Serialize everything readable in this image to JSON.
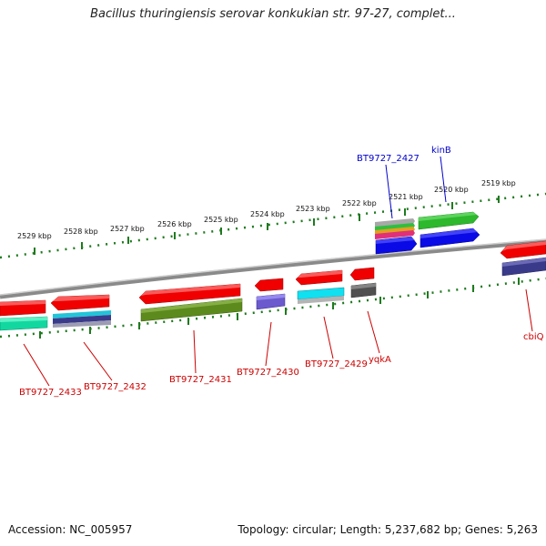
{
  "title": "Bacillus thuringiensis serovar konkukian str. 97-27, complet...",
  "footer": {
    "accession": "Accession: NC_005957",
    "summary": "Topology: circular; Length: 5,237,682 bp; Genes: 5,263"
  },
  "colors": {
    "tick": "#1f7a1f",
    "backbone": "#8a8a8a",
    "label_red": "#cc0000",
    "label_blue": "#0000cc"
  },
  "scale_labels": [
    "2529 kbp",
    "2528 kbp",
    "2527 kbp",
    "2526 kbp",
    "2525 kbp",
    "2524 kbp",
    "2523 kbp",
    "2522 kbp",
    "2521 kbp",
    "2520 kbp",
    "2519 kbp"
  ],
  "gene_labels": {
    "g2427": "BT9727_2427",
    "kinB": "kinB",
    "g2433": "BT9727_2433",
    "g2432": "BT9727_2432",
    "g2431": "BT9727_2431",
    "g2430": "BT9727_2430",
    "g2429": "BT9727_2429",
    "yqkA": "yqkA",
    "cbiQ": "cbiQ"
  }
}
